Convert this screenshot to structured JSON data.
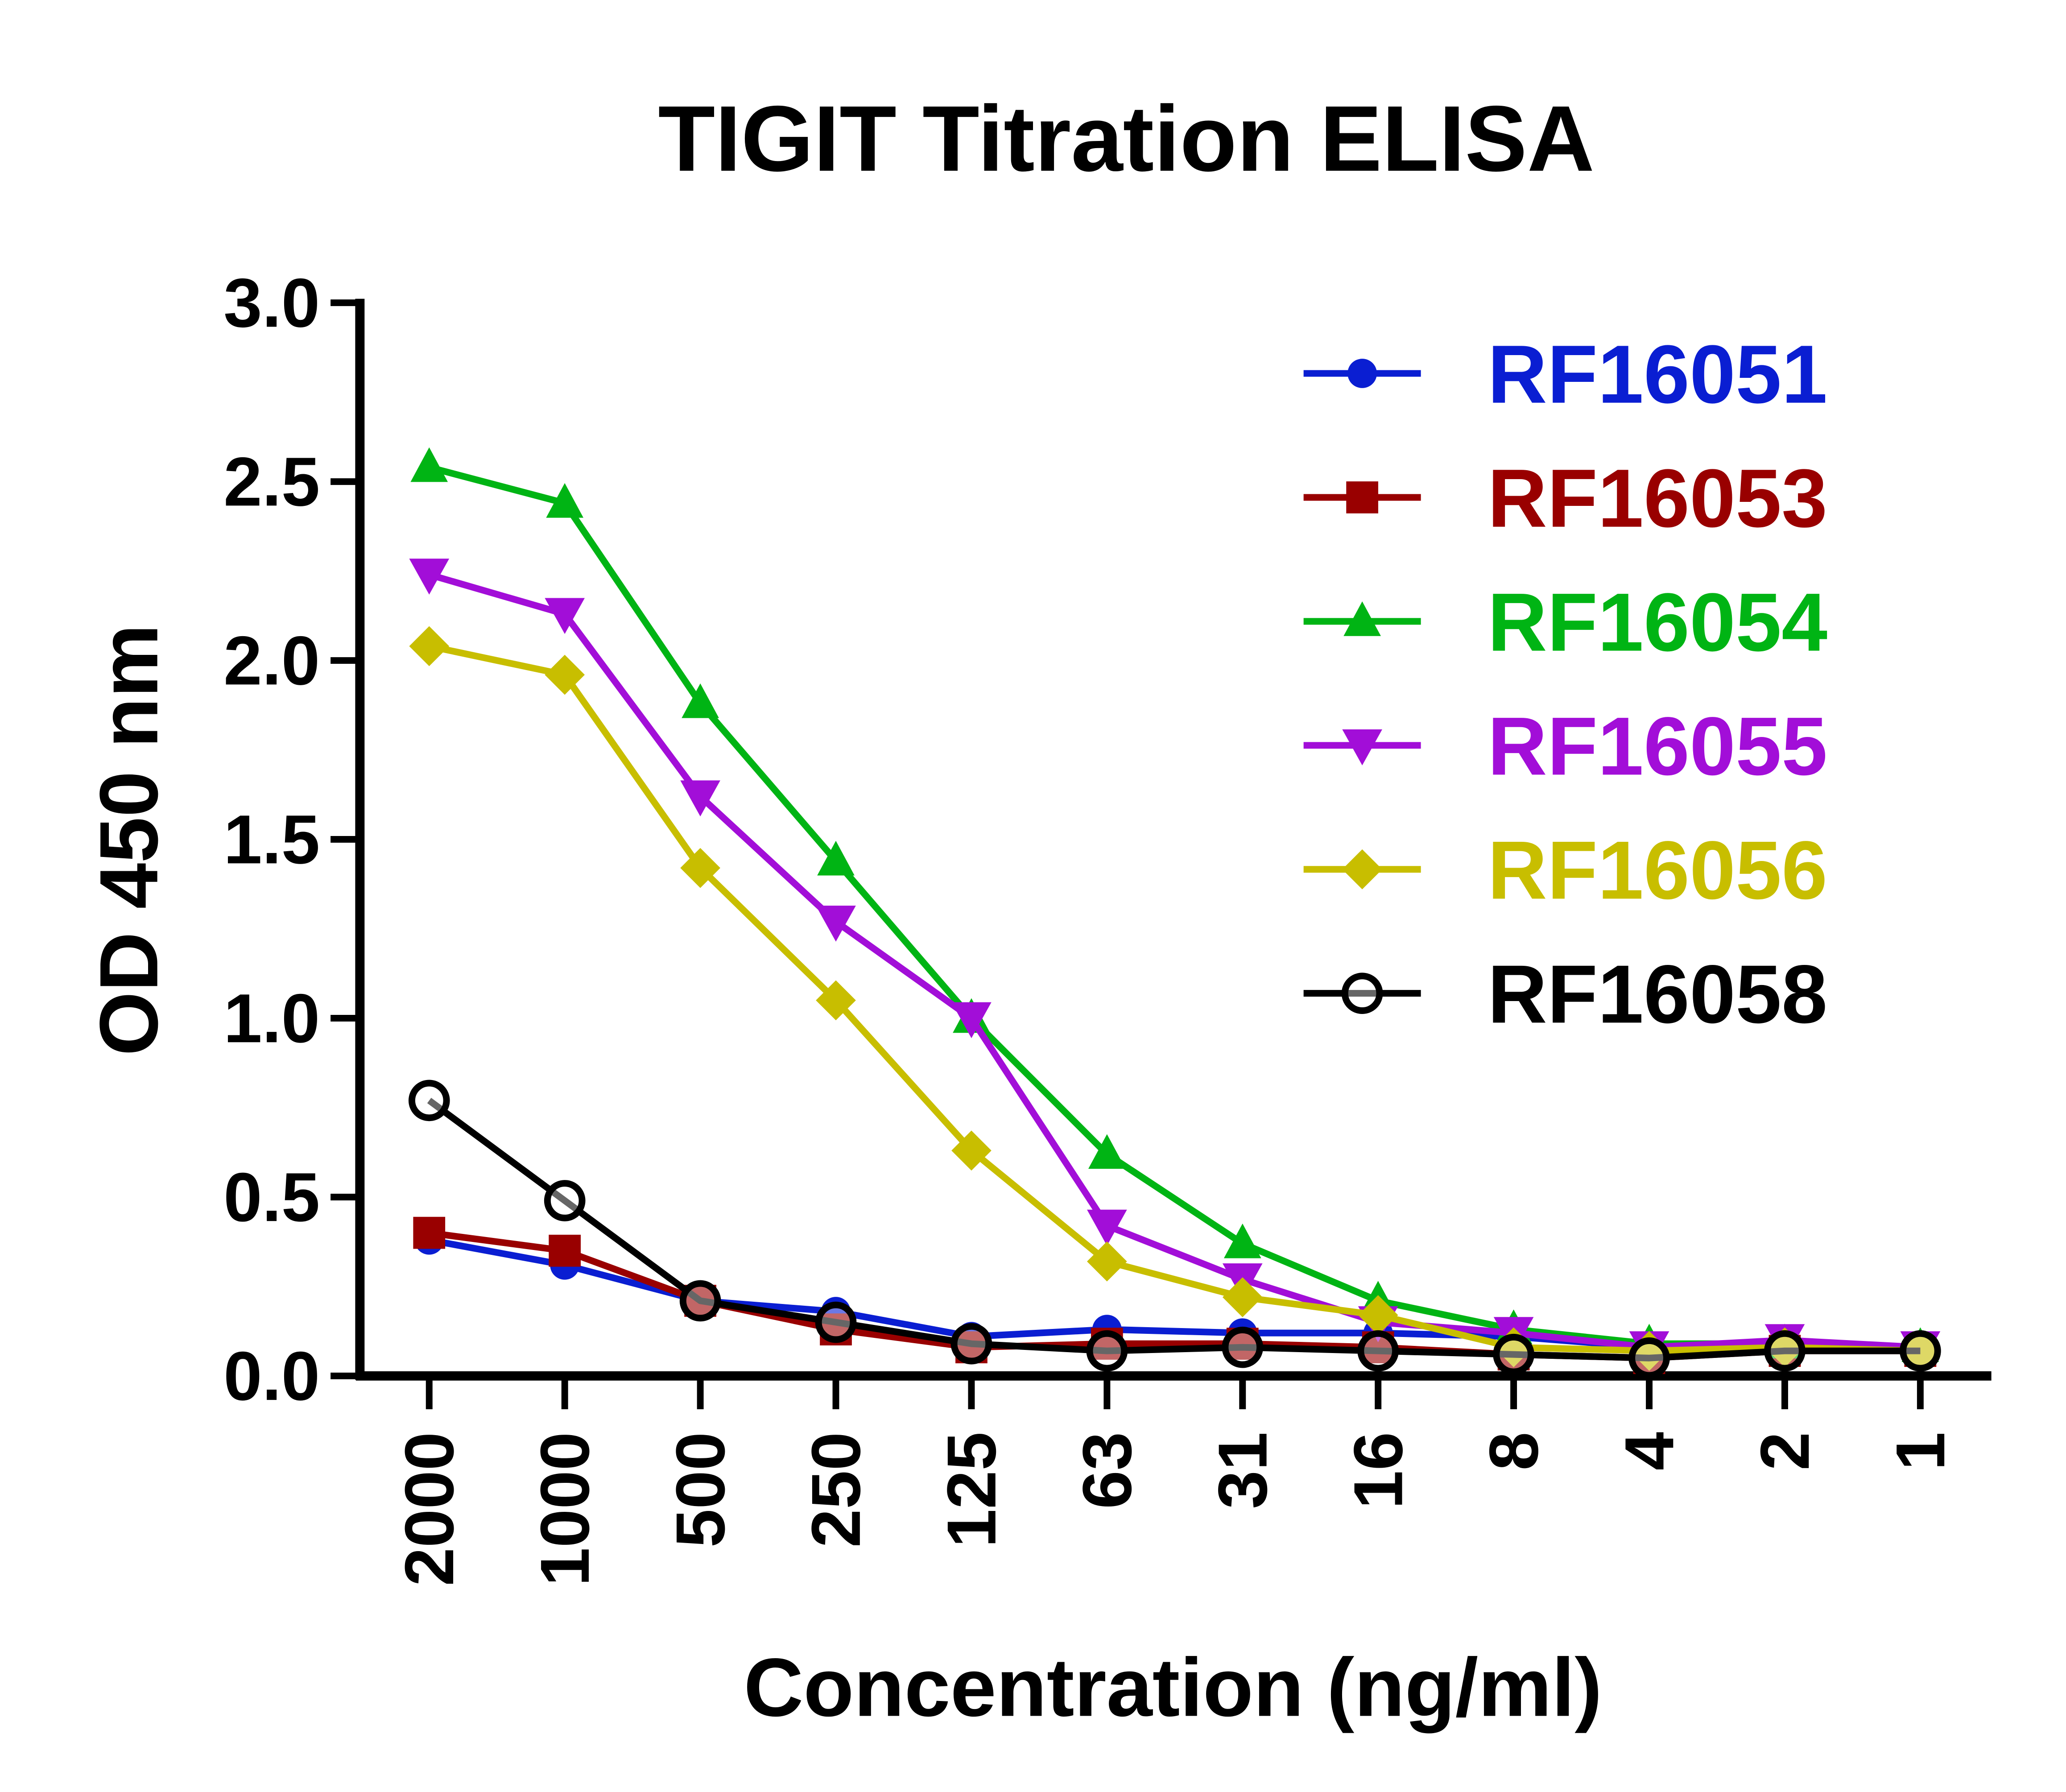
{
  "chart_data": {
    "type": "line",
    "title": "TIGIT Titration ELISA",
    "xlabel": "Concentration (ng/ml)",
    "ylabel": "OD 450 nm",
    "categories": [
      "2000",
      "1000",
      "500",
      "250",
      "125",
      "63",
      "31",
      "16",
      "8",
      "4",
      "2",
      "1"
    ],
    "ylim": [
      0,
      3.0
    ],
    "yticks": [
      "0.0",
      "0.5",
      "1.0",
      "1.5",
      "2.0",
      "2.5",
      "3.0"
    ],
    "grid": false,
    "legend_position": "top-right",
    "series": [
      {
        "name": "RF16051",
        "color": "#0a1ed2",
        "marker": "circle-filled",
        "values": [
          0.38,
          0.31,
          0.21,
          0.18,
          0.11,
          0.13,
          0.12,
          0.12,
          0.11,
          0.08,
          0.09,
          0.08
        ]
      },
      {
        "name": "RF16053",
        "color": "#990000",
        "marker": "square",
        "values": [
          0.4,
          0.35,
          0.21,
          0.13,
          0.08,
          0.09,
          0.09,
          0.08,
          0.06,
          0.05,
          0.07,
          0.07
        ]
      },
      {
        "name": "RF16054",
        "color": "#00b414",
        "marker": "triangle-up",
        "values": [
          2.54,
          2.44,
          1.88,
          1.44,
          1.0,
          0.62,
          0.37,
          0.21,
          0.13,
          0.09,
          0.09,
          0.08
        ]
      },
      {
        "name": "RF16055",
        "color": "#a20ed8",
        "marker": "triangle-down",
        "values": [
          2.24,
          2.13,
          1.62,
          1.27,
          1.0,
          0.42,
          0.27,
          0.15,
          0.12,
          0.08,
          0.1,
          0.08
        ]
      },
      {
        "name": "RF16056",
        "color": "#c8be00",
        "marker": "diamond",
        "values": [
          2.04,
          1.96,
          1.42,
          1.05,
          0.63,
          0.32,
          0.22,
          0.17,
          0.08,
          0.07,
          0.08,
          0.07
        ]
      },
      {
        "name": "RF16058",
        "color": "#000000",
        "marker": "circle-open",
        "values": [
          0.77,
          0.49,
          0.21,
          0.15,
          0.09,
          0.07,
          0.08,
          0.07,
          0.06,
          0.05,
          0.07,
          0.07
        ]
      }
    ]
  }
}
